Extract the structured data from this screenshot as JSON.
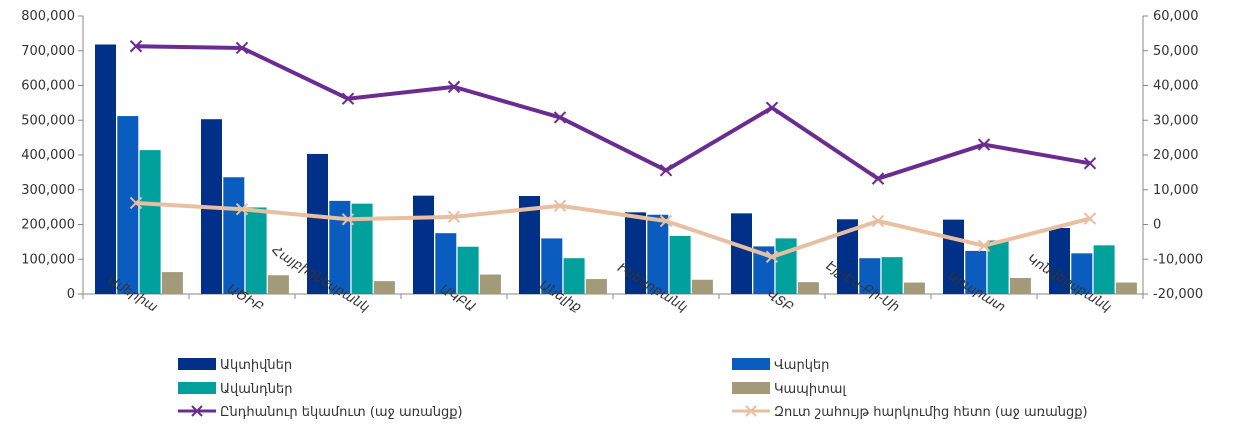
{
  "chart_data": {
    "type": "bar",
    "categories": [
      "Ամերիա",
      "ԱԾԻԲ",
      "Հայբիզնեսբանկ",
      "ԱԿԲԱ",
      "Անելիք",
      "Ինեկոբանկ",
      "ՎՏԲ",
      "Էյչ-Էս-Բի-Սի",
      "Արարատ",
      "Կոնվերսբանկ"
    ],
    "series": [
      {
        "name": "Ակտիվներ",
        "kind": "bar",
        "axis": "left",
        "color": "#003087",
        "values": [
          718000,
          503000,
          403000,
          283000,
          282000,
          235000,
          232000,
          215000,
          214000,
          190000
        ]
      },
      {
        "name": "Վարկեր",
        "kind": "bar",
        "axis": "left",
        "color": "#0B5CBF",
        "values": [
          512000,
          336000,
          268000,
          175000,
          160000,
          228000,
          137000,
          103000,
          124000,
          117000
        ]
      },
      {
        "name": "Ավանդներ",
        "kind": "bar",
        "axis": "left",
        "color": "#00A19C",
        "values": [
          414000,
          249000,
          260000,
          136000,
          103000,
          167000,
          160000,
          106000,
          154000,
          140000
        ]
      },
      {
        "name": "Կապիտալ",
        "kind": "bar",
        "axis": "left",
        "color": "#A39A7A",
        "values": [
          63000,
          54000,
          37000,
          56000,
          43000,
          41000,
          34000,
          33000,
          46000,
          33000
        ]
      },
      {
        "name": "Ընդհանուր եկամուտ (աջ առանցք)",
        "kind": "line",
        "axis": "right",
        "color": "#6B2C91",
        "values": [
          51300,
          50800,
          36200,
          39600,
          30800,
          15600,
          33600,
          13200,
          23000,
          17600
        ]
      },
      {
        "name": "Զուտ շահույթ հարկումից հետո (աջ առանցք)",
        "kind": "line",
        "axis": "right",
        "color": "#E8BFA0",
        "values": [
          6200,
          4400,
          1500,
          2200,
          5400,
          1000,
          -9300,
          1000,
          -6100,
          1700
        ]
      }
    ],
    "y_left": {
      "min": 0,
      "max": 800000,
      "step": 100000,
      "tick_labels": [
        "0",
        "100,000",
        "200,000",
        "300,000",
        "400,000",
        "500,000",
        "600,000",
        "700,000",
        "800,000"
      ]
    },
    "y_right": {
      "min": -20000,
      "max": 60000,
      "step": 10000,
      "tick_labels": [
        "-20,000",
        "-10,000",
        "0",
        "10,000",
        "20,000",
        "30,000",
        "40,000",
        "50,000",
        "60,000"
      ]
    },
    "grid": false,
    "legend_position": "bottom"
  }
}
